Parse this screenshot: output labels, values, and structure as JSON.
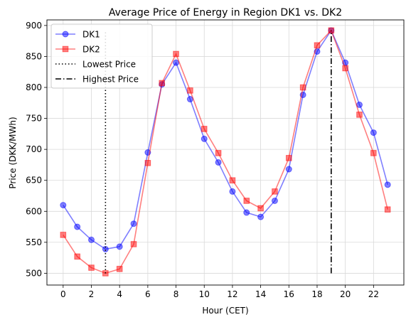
{
  "chart_data": {
    "type": "line",
    "title": "Average Price of Energy in Region DK1 vs. DK2",
    "xlabel": "Hour (CET)",
    "ylabel": "Price (DKK/MWh)",
    "xlim": [
      -1.15,
      24.15
    ],
    "ylim": [
      481,
      909
    ],
    "xticks": [
      0,
      2,
      4,
      6,
      8,
      10,
      12,
      14,
      16,
      18,
      20,
      22
    ],
    "yticks": [
      500,
      550,
      600,
      650,
      700,
      750,
      800,
      850,
      900
    ],
    "grid": true,
    "legend_position": "top-left",
    "x": [
      0,
      1,
      2,
      3,
      4,
      5,
      6,
      7,
      8,
      9,
      10,
      11,
      12,
      13,
      14,
      15,
      16,
      17,
      18,
      19,
      20,
      21,
      22,
      23
    ],
    "series": [
      {
        "name": "DK1",
        "color": "#0000ff",
        "marker": "circle",
        "values": [
          610,
          575,
          554,
          539,
          543,
          580,
          695,
          805,
          840,
          781,
          717,
          679,
          632,
          598,
          591,
          617,
          668,
          788,
          858,
          892,
          840,
          772,
          727,
          643
        ]
      },
      {
        "name": "DK2",
        "color": "#ff0000",
        "marker": "square",
        "values": [
          562,
          527,
          509,
          500,
          507,
          547,
          678,
          807,
          854,
          795,
          733,
          694,
          650,
          617,
          605,
          632,
          686,
          800,
          868,
          892,
          831,
          756,
          694,
          603
        ]
      }
    ],
    "vlines": [
      {
        "name": "Lowest Price",
        "x": 3,
        "ymin": 500,
        "ymax": 892,
        "style": "dotted"
      },
      {
        "name": "Highest Price",
        "x": 19,
        "ymin": 500,
        "ymax": 892,
        "style": "dashdot"
      }
    ]
  }
}
